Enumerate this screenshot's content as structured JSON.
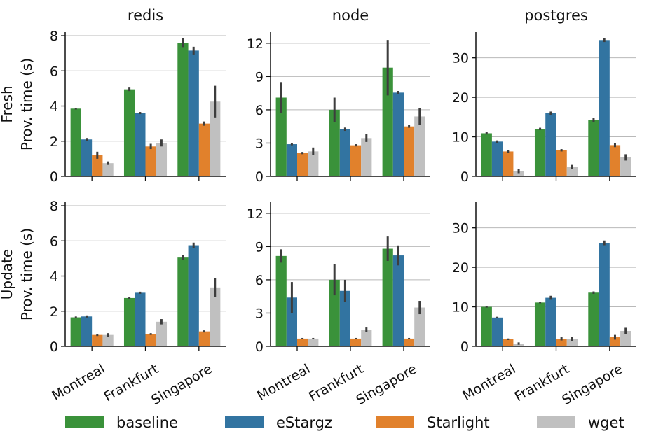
{
  "chart_data": {
    "type": "bar",
    "categories": [
      "Montreal",
      "Frankfurt",
      "Singapore"
    ],
    "legend": {
      "placement": "bottom",
      "entries": [
        {
          "name": "baseline",
          "color": "#3a923a"
        },
        {
          "name": "eStargz",
          "color": "#3274a1"
        },
        {
          "name": "Starlight",
          "color": "#e1812c"
        },
        {
          "name": "wget",
          "color": "#c0c0c0"
        }
      ]
    },
    "rows": [
      {
        "label_line1": "Fresh",
        "label_line2": "Prov. time (s)"
      },
      {
        "label_line1": "Update",
        "label_line2": "Prov. time (s)"
      }
    ],
    "columns": [
      {
        "title": "redis",
        "ylim": [
          0,
          8.2
        ],
        "ticks": [
          0,
          2,
          4,
          6,
          8
        ]
      },
      {
        "title": "node",
        "ylim": [
          0,
          13
        ],
        "ticks": [
          0,
          3,
          6,
          9,
          12
        ]
      },
      {
        "title": "postgres",
        "ylim": [
          0,
          36.5
        ],
        "ticks": [
          0,
          10,
          20,
          30
        ]
      }
    ],
    "panels": [
      {
        "row": 0,
        "col": 0,
        "grid": true,
        "series": [
          {
            "name": "baseline",
            "values": [
              3.85,
              4.95,
              7.6
            ],
            "err": [
              0.05,
              0.1,
              0.25
            ]
          },
          {
            "name": "eStargz",
            "values": [
              2.1,
              3.6,
              7.15
            ],
            "err": [
              0.08,
              0.06,
              0.22
            ]
          },
          {
            "name": "Starlight",
            "values": [
              1.2,
              1.7,
              3.0
            ],
            "err": [
              0.2,
              0.15,
              0.12
            ]
          },
          {
            "name": "wget",
            "values": [
              0.75,
              1.9,
              4.25
            ],
            "err": [
              0.1,
              0.2,
              0.9
            ]
          }
        ]
      },
      {
        "row": 0,
        "col": 1,
        "grid": true,
        "series": [
          {
            "name": "baseline",
            "values": [
              7.1,
              6.0,
              9.8
            ],
            "err": [
              1.4,
              1.1,
              2.5
            ]
          },
          {
            "name": "eStargz",
            "values": [
              2.9,
              4.25,
              7.55
            ],
            "err": [
              0.1,
              0.15,
              0.15
            ]
          },
          {
            "name": "Starlight",
            "values": [
              2.1,
              2.8,
              4.5
            ],
            "err": [
              0.1,
              0.1,
              0.12
            ]
          },
          {
            "name": "wget",
            "values": [
              2.25,
              3.45,
              5.4
            ],
            "err": [
              0.35,
              0.35,
              0.75
            ]
          }
        ]
      },
      {
        "row": 0,
        "col": 2,
        "grid": true,
        "series": [
          {
            "name": "baseline",
            "values": [
              10.9,
              12.0,
              14.3
            ],
            "err": [
              0.3,
              0.3,
              0.5
            ]
          },
          {
            "name": "eStargz",
            "values": [
              8.8,
              16.0,
              34.5
            ],
            "err": [
              0.3,
              0.4,
              0.5
            ]
          },
          {
            "name": "Starlight",
            "values": [
              6.3,
              6.6,
              7.9
            ],
            "err": [
              0.3,
              0.3,
              0.5
            ]
          },
          {
            "name": "wget",
            "values": [
              1.3,
              2.4,
              4.8
            ],
            "err": [
              0.5,
              0.5,
              0.8
            ]
          }
        ]
      },
      {
        "row": 1,
        "col": 0,
        "grid": true,
        "series": [
          {
            "name": "baseline",
            "values": [
              1.65,
              2.75,
              5.05
            ],
            "err": [
              0.05,
              0.05,
              0.15
            ]
          },
          {
            "name": "eStargz",
            "values": [
              1.7,
              3.05,
              5.75
            ],
            "err": [
              0.06,
              0.06,
              0.15
            ]
          },
          {
            "name": "Starlight",
            "values": [
              0.65,
              0.7,
              0.85
            ],
            "err": [
              0.06,
              0.05,
              0.06
            ]
          },
          {
            "name": "wget",
            "values": [
              0.65,
              1.4,
              3.35
            ],
            "err": [
              0.1,
              0.15,
              0.55
            ]
          }
        ]
      },
      {
        "row": 1,
        "col": 1,
        "grid": true,
        "series": [
          {
            "name": "baseline",
            "values": [
              8.15,
              6.0,
              8.8
            ],
            "err": [
              0.6,
              1.4,
              1.1
            ]
          },
          {
            "name": "eStargz",
            "values": [
              4.4,
              5.0,
              8.2
            ],
            "err": [
              1.4,
              1.0,
              0.9
            ]
          },
          {
            "name": "Starlight",
            "values": [
              0.7,
              0.7,
              0.7
            ],
            "err": [
              0.06,
              0.06,
              0.06
            ]
          },
          {
            "name": "wget",
            "values": [
              0.7,
              1.5,
              3.5
            ],
            "err": [
              0.06,
              0.2,
              0.6
            ]
          }
        ]
      },
      {
        "row": 1,
        "col": 2,
        "grid": true,
        "series": [
          {
            "name": "baseline",
            "values": [
              10.0,
              11.1,
              13.6
            ],
            "err": [
              0.2,
              0.2,
              0.3
            ]
          },
          {
            "name": "eStargz",
            "values": [
              7.3,
              12.3,
              26.2
            ],
            "err": [
              0.2,
              0.5,
              0.6
            ]
          },
          {
            "name": "Starlight",
            "values": [
              1.8,
              1.9,
              2.3
            ],
            "err": [
              0.2,
              0.4,
              0.6
            ]
          },
          {
            "name": "wget",
            "values": [
              0.7,
              1.9,
              3.9
            ],
            "err": [
              0.3,
              0.5,
              0.8
            ]
          }
        ]
      }
    ]
  }
}
